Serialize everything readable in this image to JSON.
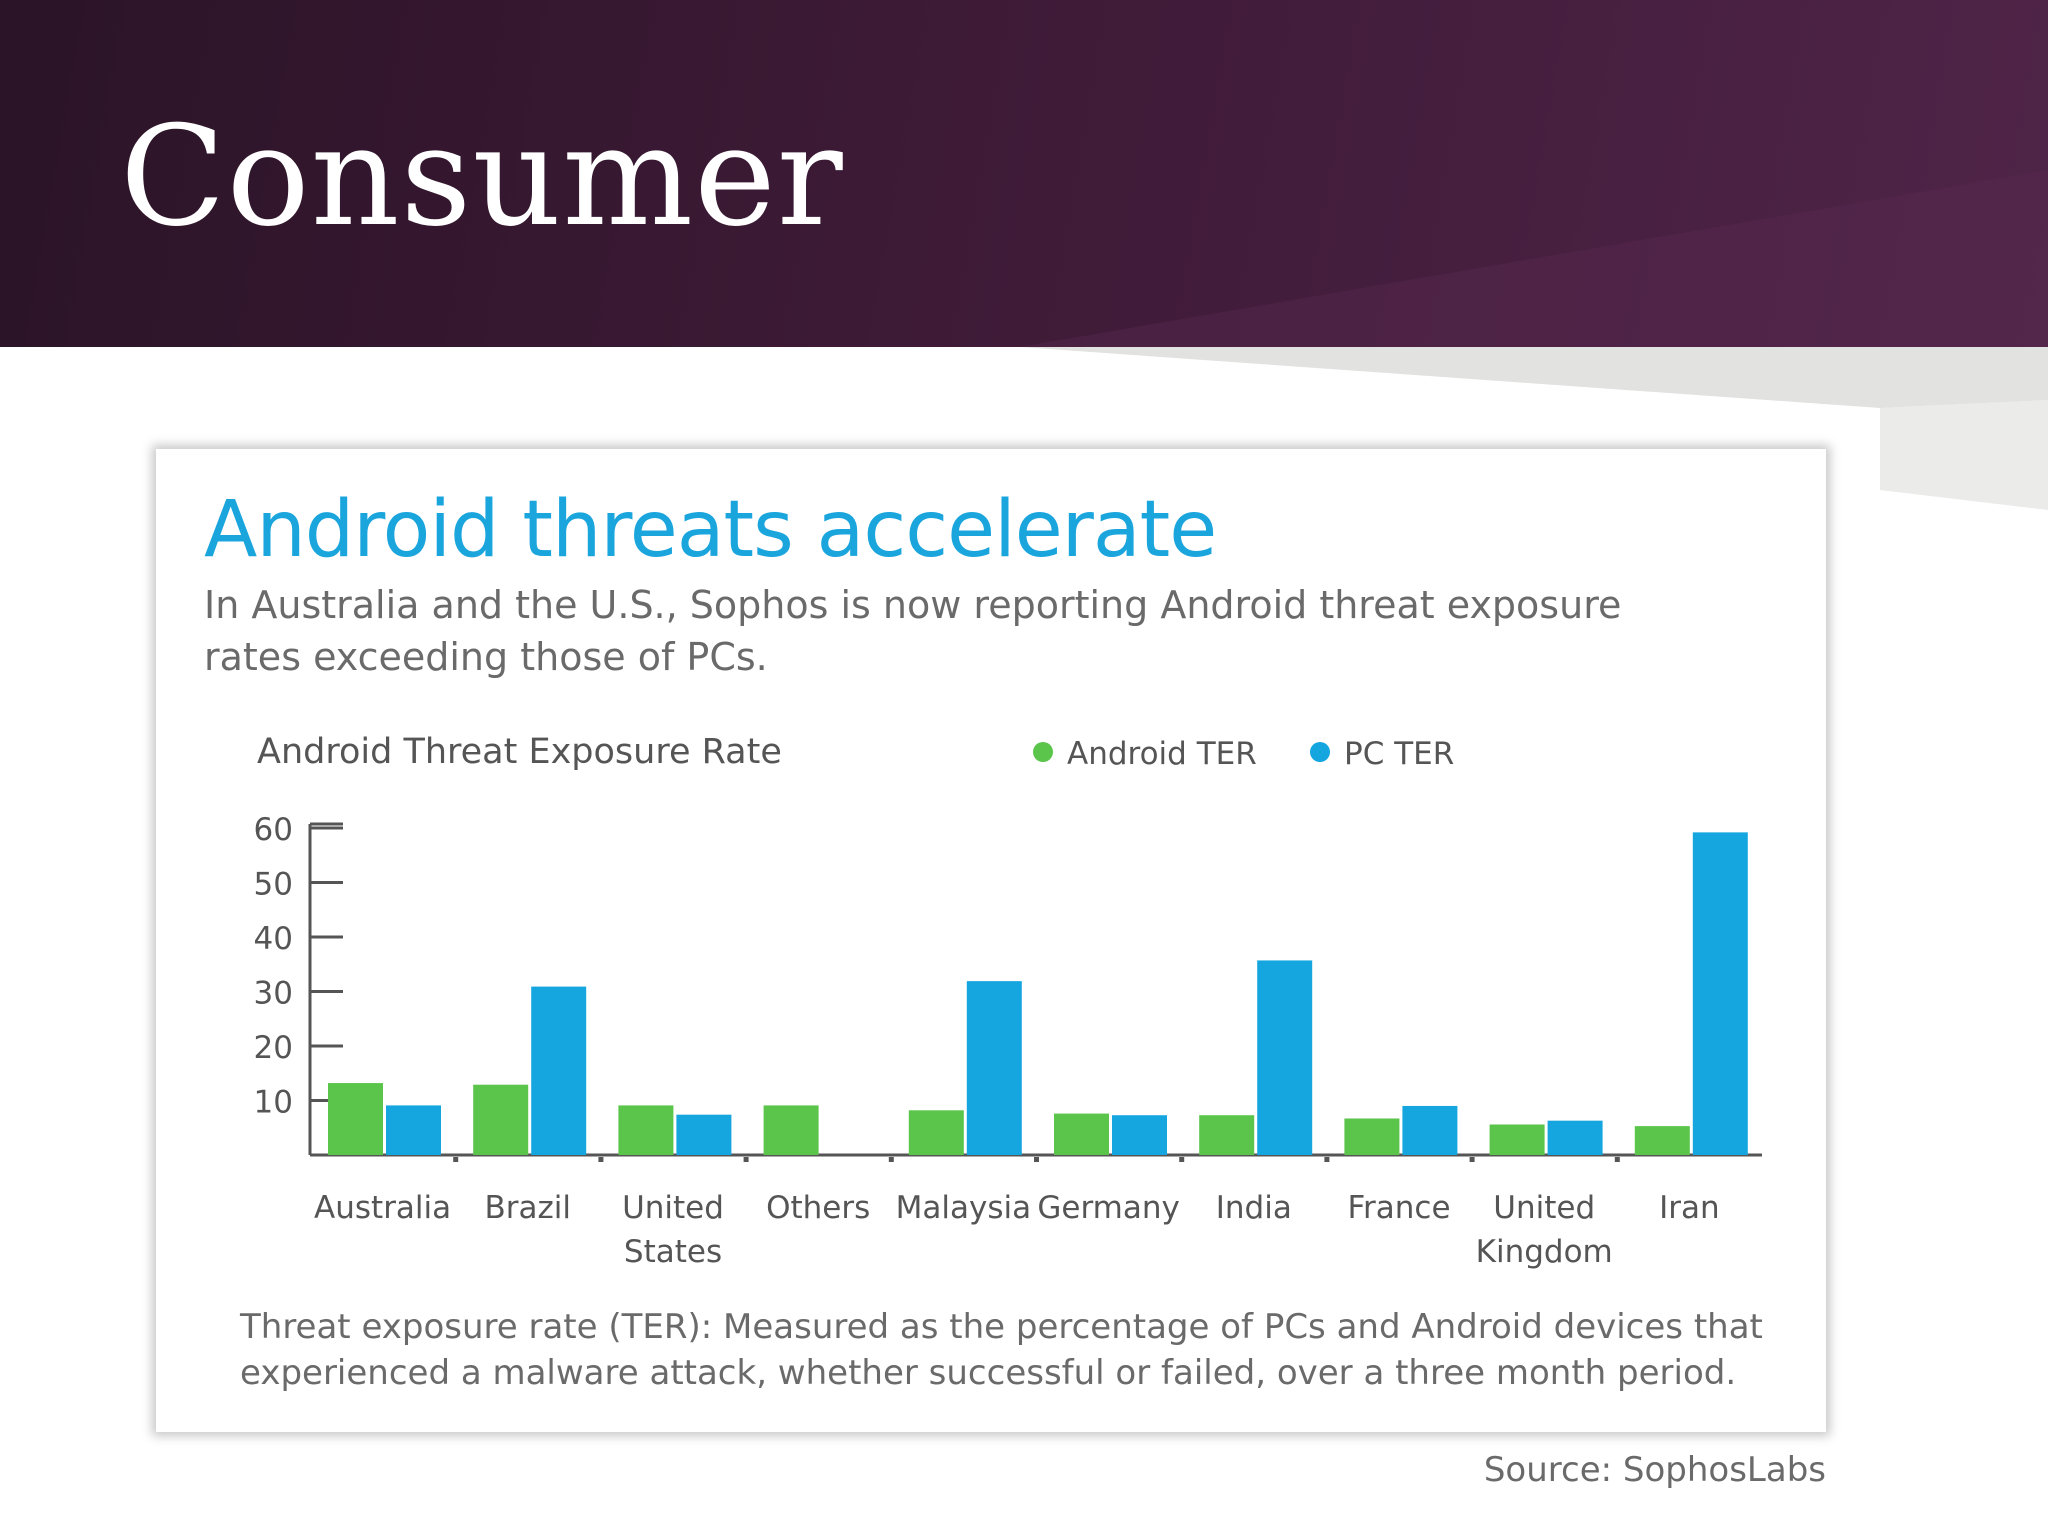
{
  "slide": {
    "title": "Consumer",
    "source": "Source: SophosLabs"
  },
  "card": {
    "title": "Android threats accelerate",
    "subtitle": "In Australia and the U.S., Sophos is now reporting Android threat exposure rates exceeding those of PCs.",
    "footnote": "Threat exposure rate (TER): Measured as the percentage of PCs and Android devices that experienced a malware attack, whether successful or failed, over a three month period."
  },
  "colors": {
    "android": "#5ac54a",
    "pc": "#16a6df",
    "axis": "#555555",
    "text": "#555555"
  },
  "chart_data": {
    "type": "bar",
    "title": "Android Threat Exposure Rate",
    "categories": [
      [
        "Australia"
      ],
      [
        "Brazil"
      ],
      [
        "United",
        "States"
      ],
      [
        "Others"
      ],
      [
        "Malaysia"
      ],
      [
        "Germany"
      ],
      [
        "India"
      ],
      [
        "France"
      ],
      [
        "United",
        "Kingdom"
      ],
      [
        "Iran"
      ]
    ],
    "series": [
      {
        "name": "Android TER",
        "color": "#5ac54a",
        "values": [
          13.2,
          12.9,
          9.1,
          9.1,
          8.2,
          7.6,
          7.3,
          6.7,
          5.6,
          5.3
        ]
      },
      {
        "name": "PC TER",
        "color": "#16a6df",
        "values": [
          9.1,
          30.9,
          7.4,
          null,
          31.9,
          7.3,
          35.7,
          9.0,
          6.3,
          59.2
        ]
      }
    ],
    "yticks": [
      10,
      20,
      30,
      40,
      50,
      60
    ],
    "ylim": [
      0,
      60
    ],
    "legend": "top-right"
  }
}
